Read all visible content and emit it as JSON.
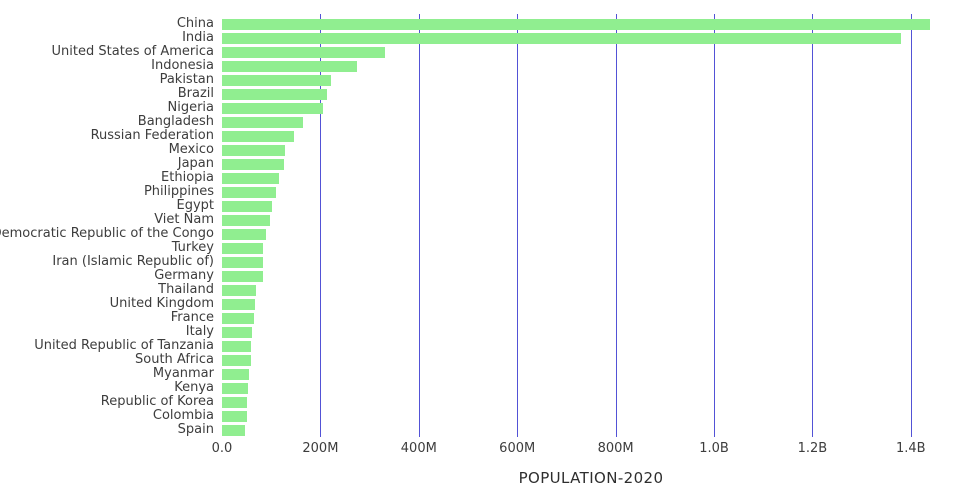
{
  "chart_data": {
    "type": "bar",
    "orientation": "horizontal",
    "title": "",
    "xlabel": "POPULATION-2020",
    "ylabel": "",
    "grid": true,
    "legend": false,
    "xlim_millions": [
      0,
      1500
    ],
    "bar_color": "#90ee90",
    "gridline_color": "#5252d6",
    "x_ticks": [
      {
        "value": 0,
        "label": "0.0"
      },
      {
        "value": 200,
        "label": "200M"
      },
      {
        "value": 400,
        "label": "400M"
      },
      {
        "value": 600,
        "label": "600M"
      },
      {
        "value": 800,
        "label": "800M"
      },
      {
        "value": 1000,
        "label": "1.0B"
      },
      {
        "value": 1200,
        "label": "1.2B"
      },
      {
        "value": 1400,
        "label": "1.4B"
      }
    ],
    "categories": [
      "China",
      "India",
      "United States of America",
      "Indonesia",
      "Pakistan",
      "Brazil",
      "Nigeria",
      "Bangladesh",
      "Russian Federation",
      "Mexico",
      "Japan",
      "Ethiopia",
      "Philippines",
      "Egypt",
      "Viet Nam",
      "Democratic Republic of the Congo",
      "Turkey",
      "Iran (Islamic Republic of)",
      "Germany",
      "Thailand",
      "United Kingdom",
      "France",
      "Italy",
      "United Republic of Tanzania",
      "South Africa",
      "Myanmar",
      "Kenya",
      "Republic of Korea",
      "Colombia",
      "Spain"
    ],
    "values_millions": [
      1439.3,
      1380.0,
      331.0,
      273.5,
      220.9,
      212.6,
      206.1,
      164.7,
      145.9,
      128.9,
      126.5,
      115.0,
      109.6,
      102.3,
      97.3,
      89.6,
      84.3,
      84.0,
      83.8,
      69.8,
      67.9,
      65.3,
      60.5,
      59.7,
      59.3,
      54.4,
      53.8,
      51.3,
      50.9,
      46.8
    ]
  }
}
